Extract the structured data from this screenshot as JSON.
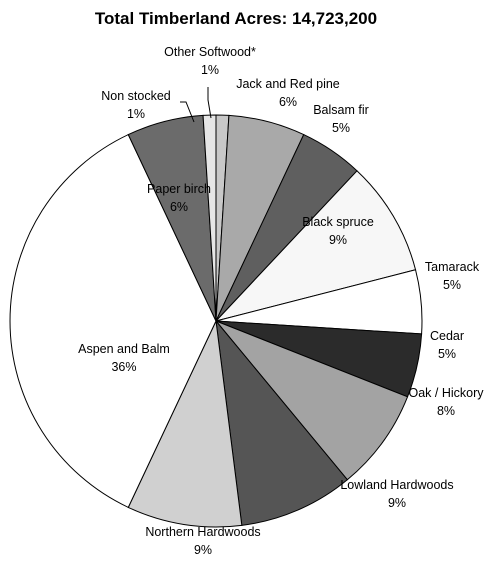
{
  "chart_data": {
    "type": "pie",
    "title": "Total Timberland Acres: 14,723,200",
    "slices": [
      {
        "name": "Other Softwood*",
        "pct_label": "1%",
        "value": 1,
        "color": "#c8c8c8"
      },
      {
        "name": "Jack and Red pine",
        "pct_label": "6%",
        "value": 6,
        "color": "#a9a9a9"
      },
      {
        "name": "Balsam fir",
        "pct_label": "5%",
        "value": 5,
        "color": "#5f5f5f"
      },
      {
        "name": "Black spruce",
        "pct_label": "9%",
        "value": 9,
        "color": "#f7f7f7"
      },
      {
        "name": "Tamarack",
        "pct_label": "5%",
        "value": 5,
        "color": "#ffffff"
      },
      {
        "name": "Cedar",
        "pct_label": "5%",
        "value": 5,
        "color": "#2b2b2b"
      },
      {
        "name": "Oak / Hickory",
        "pct_label": "8%",
        "value": 8,
        "color": "#a3a3a3"
      },
      {
        "name": "Lowland Hardwoods",
        "pct_label": "9%",
        "value": 9,
        "color": "#555555"
      },
      {
        "name": "Northern Hardwoods",
        "pct_label": "9%",
        "value": 9,
        "color": "#d0d0d0"
      },
      {
        "name": "Aspen and Balm",
        "pct_label": "36%",
        "value": 36,
        "color": "#ffffff"
      },
      {
        "name": "Paper birch",
        "pct_label": "6%",
        "value": 6,
        "color": "#6b6b6b"
      },
      {
        "name": "Non stocked",
        "pct_label": "1%",
        "value": 1,
        "color": "#e6e6e6"
      }
    ]
  }
}
